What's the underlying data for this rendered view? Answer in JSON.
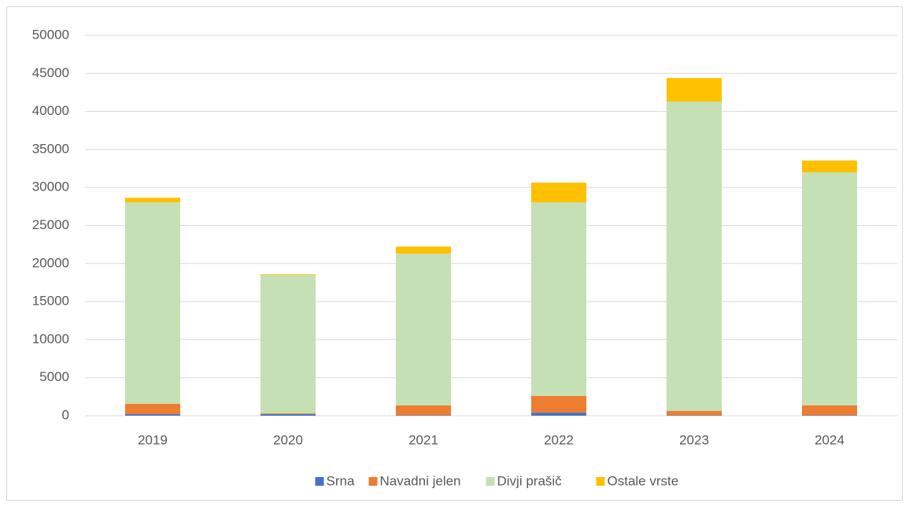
{
  "chart_data": {
    "type": "stacked_bar",
    "categories": [
      "2019",
      "2020",
      "2021",
      "2022",
      "2023",
      "2024"
    ],
    "series": [
      {
        "name": "Srna",
        "color": "#4472c4",
        "values": [
          200,
          200,
          50,
          400,
          50,
          50
        ]
      },
      {
        "name": "Navadni jelen",
        "color": "#ed7d31",
        "values": [
          1350,
          100,
          1300,
          2190,
          570,
          1300
        ]
      },
      {
        "name": "Divji prašič",
        "color": "#c5e0b4",
        "values": [
          26500,
          18200,
          19950,
          25460,
          40680,
          30640
        ]
      },
      {
        "name": "Ostale vrste",
        "color": "#ffc000",
        "values": [
          600,
          100,
          930,
          2590,
          3100,
          1560
        ]
      }
    ],
    "ylim": [
      0,
      50000
    ],
    "yticks": [
      0,
      5000,
      10000,
      15000,
      20000,
      25000,
      30000,
      35000,
      40000,
      45000,
      50000
    ],
    "grid": true,
    "legend": "bottom"
  }
}
